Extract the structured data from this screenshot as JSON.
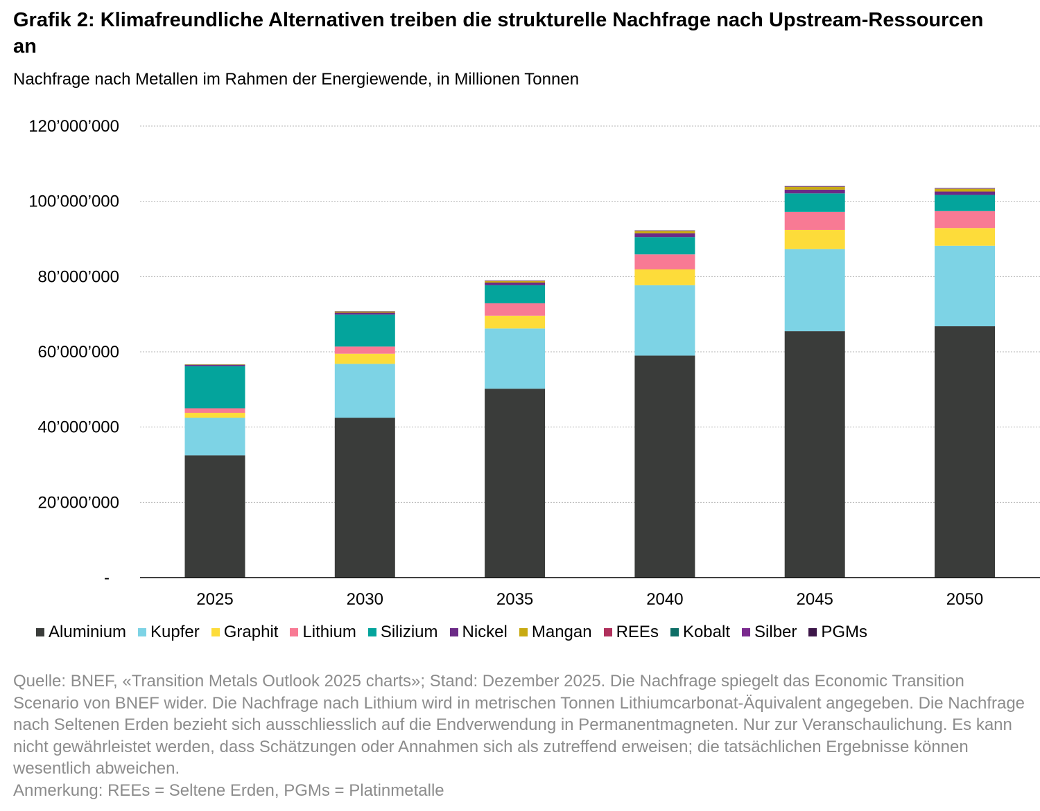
{
  "title": "Grafik 2: Klimafreundliche Alternativen treiben die strukturelle Nachfrage nach Upstream-Ressourcen an",
  "subtitle": "Nachfrage nach Metallen im Rahmen der Energiewende, in Millionen Tonnen",
  "chart_data": {
    "type": "bar",
    "stacked": true,
    "categories": [
      "2025",
      "2030",
      "2035",
      "2040",
      "2045",
      "2050"
    ],
    "ylim": [
      0,
      120000000
    ],
    "yticks": [
      {
        "value": 0,
        "label": "-"
      },
      {
        "value": 20000000,
        "label": "20’000’000"
      },
      {
        "value": 40000000,
        "label": "40’000’000"
      },
      {
        "value": 60000000,
        "label": "60’000’000"
      },
      {
        "value": 80000000,
        "label": "80’000’000"
      },
      {
        "value": 100000000,
        "label": "100’000’000"
      },
      {
        "value": 120000000,
        "label": "120’000’000"
      }
    ],
    "grid": true,
    "legend_position": "bottom",
    "series": [
      {
        "name": "Aluminium",
        "color": "#3a3c3a",
        "values": [
          32500000,
          42500000,
          50200000,
          59000000,
          65500000,
          66800000
        ]
      },
      {
        "name": "Kupfer",
        "color": "#7dd3e5",
        "values": [
          10000000,
          14300000,
          16000000,
          18700000,
          21800000,
          21400000
        ]
      },
      {
        "name": "Graphit",
        "color": "#fddc3a",
        "values": [
          1300000,
          2700000,
          3400000,
          4200000,
          5100000,
          4700000
        ]
      },
      {
        "name": "Lithium",
        "color": "#f87a94",
        "values": [
          1200000,
          1900000,
          3300000,
          4000000,
          4800000,
          4500000
        ]
      },
      {
        "name": "Silizium",
        "color": "#04a49c",
        "values": [
          11200000,
          8500000,
          4800000,
          4600000,
          4900000,
          4300000
        ]
      },
      {
        "name": "Nickel",
        "color": "#6b2a86",
        "values": [
          300000,
          500000,
          700000,
          1000000,
          1000000,
          900000
        ]
      },
      {
        "name": "Mangan",
        "color": "#c8aa12",
        "values": [
          100000,
          300000,
          400000,
          600000,
          700000,
          700000
        ]
      },
      {
        "name": "REEs",
        "color": "#b0305c",
        "values": [
          20000,
          40000,
          60000,
          80000,
          100000,
          100000
        ]
      },
      {
        "name": "Kobalt",
        "color": "#0e6e66",
        "values": [
          30000,
          40000,
          50000,
          60000,
          70000,
          70000
        ]
      },
      {
        "name": "Silber",
        "color": "#7a2a8e",
        "values": [
          30000,
          40000,
          50000,
          50000,
          60000,
          60000
        ]
      },
      {
        "name": "PGMs",
        "color": "#3c1648",
        "values": [
          10000,
          10000,
          20000,
          20000,
          30000,
          30000
        ]
      }
    ]
  },
  "notes": {
    "source": "Quelle: BNEF, «Transition Metals Outlook 2025 charts»; Stand: Dezember 2025. Die Nachfrage spiegelt das Economic Transition Scenario von BNEF wider. Die Nachfrage nach Lithium wird in metrischen Tonnen Lithiumcarbonat-Äquivalent angegeben. Die Nachfrage nach Seltenen Erden bezieht sich ausschliesslich auf die Endverwendung in Permanentmagneten. Nur zur Veranschaulichung. Es kann nicht gewährleistet werden, dass Schätzungen oder Annahmen sich als zutreffend erweisen; die tatsächlichen Ergebnisse können wesentlich abweichen.",
    "remark": "Anmerkung: REEs = Seltene Erden, PGMs = Platinmetalle"
  }
}
